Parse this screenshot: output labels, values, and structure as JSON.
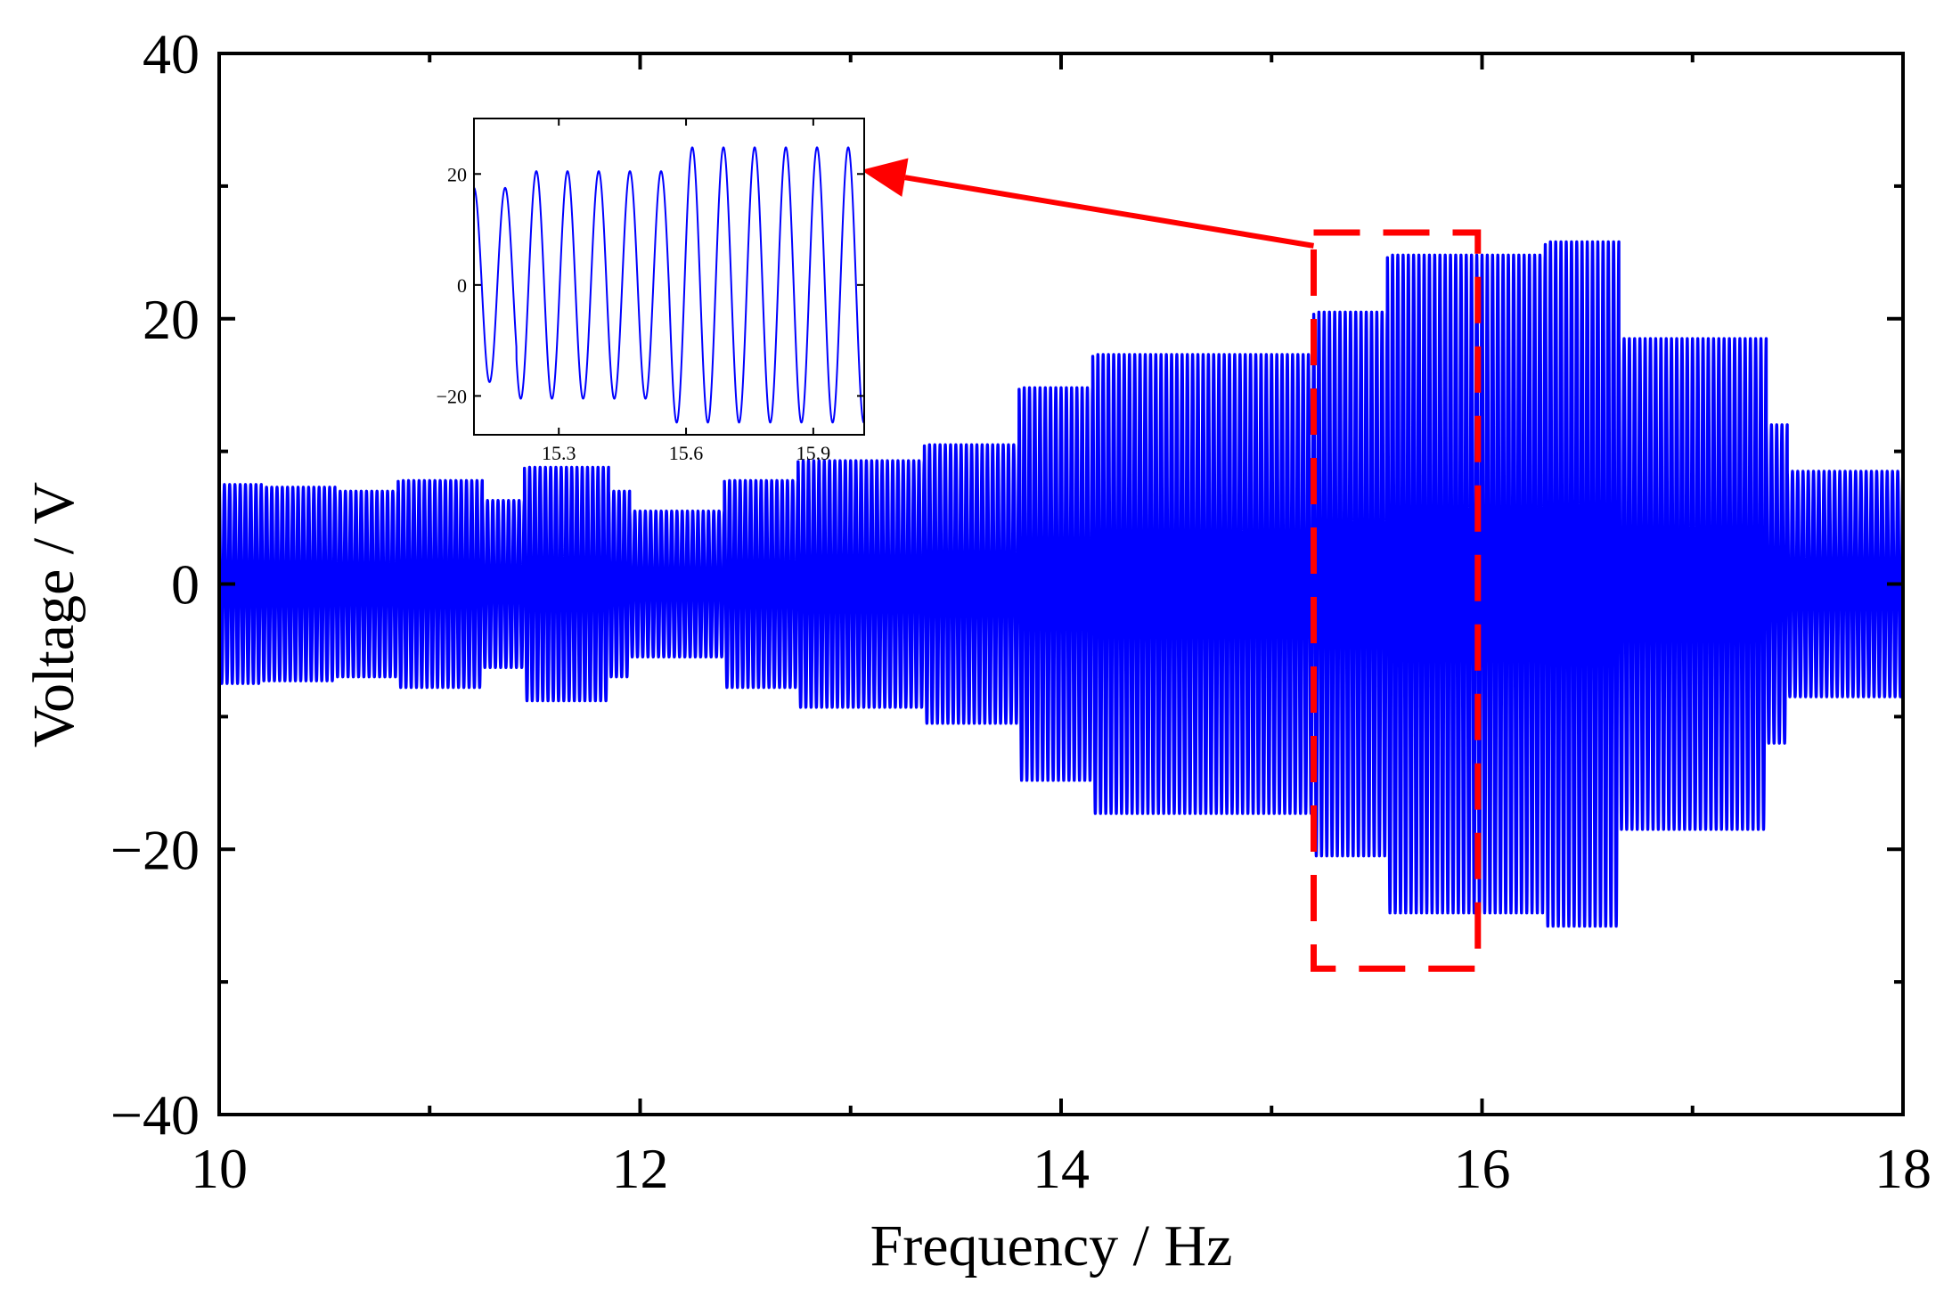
{
  "chart_data": {
    "type": "line",
    "title": "",
    "xlabel": "Frequency / Hz",
    "ylabel": "Voltage / V",
    "xlim": [
      10,
      18
    ],
    "ylim": [
      -40,
      40
    ],
    "x_ticks": [
      10,
      12,
      14,
      16,
      18
    ],
    "x_tick_labels": [
      "10",
      "12",
      "14",
      "16",
      "18"
    ],
    "y_ticks": [
      -40,
      -20,
      0,
      20,
      40
    ],
    "y_tick_labels": [
      "−40",
      "−20",
      "0",
      "20",
      "40"
    ],
    "grid": false,
    "legend": "none",
    "series": [
      {
        "name": "Voltage",
        "color": "#0000ff",
        "cycles_per_hz": 40,
        "envelope": [
          {
            "x0": 10.0,
            "x1": 10.2,
            "amp": 7.5
          },
          {
            "x0": 10.2,
            "x1": 10.55,
            "amp": 7.3
          },
          {
            "x0": 10.55,
            "x1": 10.85,
            "amp": 7.0
          },
          {
            "x0": 10.85,
            "x1": 11.25,
            "amp": 7.8
          },
          {
            "x0": 11.25,
            "x1": 11.45,
            "amp": 6.3
          },
          {
            "x0": 11.45,
            "x1": 11.85,
            "amp": 8.8
          },
          {
            "x0": 11.85,
            "x1": 11.95,
            "amp": 7.0
          },
          {
            "x0": 11.95,
            "x1": 12.4,
            "amp": 5.5
          },
          {
            "x0": 12.4,
            "x1": 12.75,
            "amp": 7.8
          },
          {
            "x0": 12.75,
            "x1": 13.35,
            "amp": 9.3
          },
          {
            "x0": 13.35,
            "x1": 13.8,
            "amp": 10.5
          },
          {
            "x0": 13.8,
            "x1": 14.15,
            "amp": 14.8
          },
          {
            "x0": 14.15,
            "x1": 15.2,
            "amp": 17.3
          },
          {
            "x0": 15.2,
            "x1": 15.55,
            "amp": 20.5
          },
          {
            "x0": 15.55,
            "x1": 16.3,
            "amp": 24.8
          },
          {
            "x0": 16.3,
            "x1": 16.65,
            "amp": 25.8
          },
          {
            "x0": 16.65,
            "x1": 17.35,
            "amp": 18.5
          },
          {
            "x0": 17.35,
            "x1": 17.45,
            "amp": 12.0
          },
          {
            "x0": 17.45,
            "x1": 18.0,
            "amp": 8.5
          }
        ]
      }
    ],
    "annotations": [
      {
        "type": "dashed-rect",
        "color": "#ff0000",
        "x": [
          15.2,
          15.98
        ],
        "y": [
          -29,
          26.5
        ]
      },
      {
        "type": "arrow",
        "color": "#ff0000",
        "from": [
          15.2,
          25.5
        ],
        "to": [
          13.05,
          31.2
        ]
      }
    ],
    "inset": {
      "type": "line",
      "xlim": [
        15.1,
        16.02
      ],
      "ylim": [
        -27,
        30
      ],
      "x_ticks": [
        15.3,
        15.6,
        15.9
      ],
      "x_tick_labels": [
        "15.3",
        "15.6",
        "15.9"
      ],
      "y_ticks": [
        -20,
        0,
        20
      ],
      "y_tick_labels": [
        "−20",
        "0",
        "20"
      ],
      "color": "#0000ff",
      "cycles_per_hz": 13.6,
      "envelope": [
        {
          "x0": 15.1,
          "x1": 15.2,
          "amp": 17.5
        },
        {
          "x0": 15.2,
          "x1": 15.56,
          "amp": 20.5
        },
        {
          "x0": 15.56,
          "x1": 16.02,
          "amp": 24.8
        }
      ]
    }
  }
}
